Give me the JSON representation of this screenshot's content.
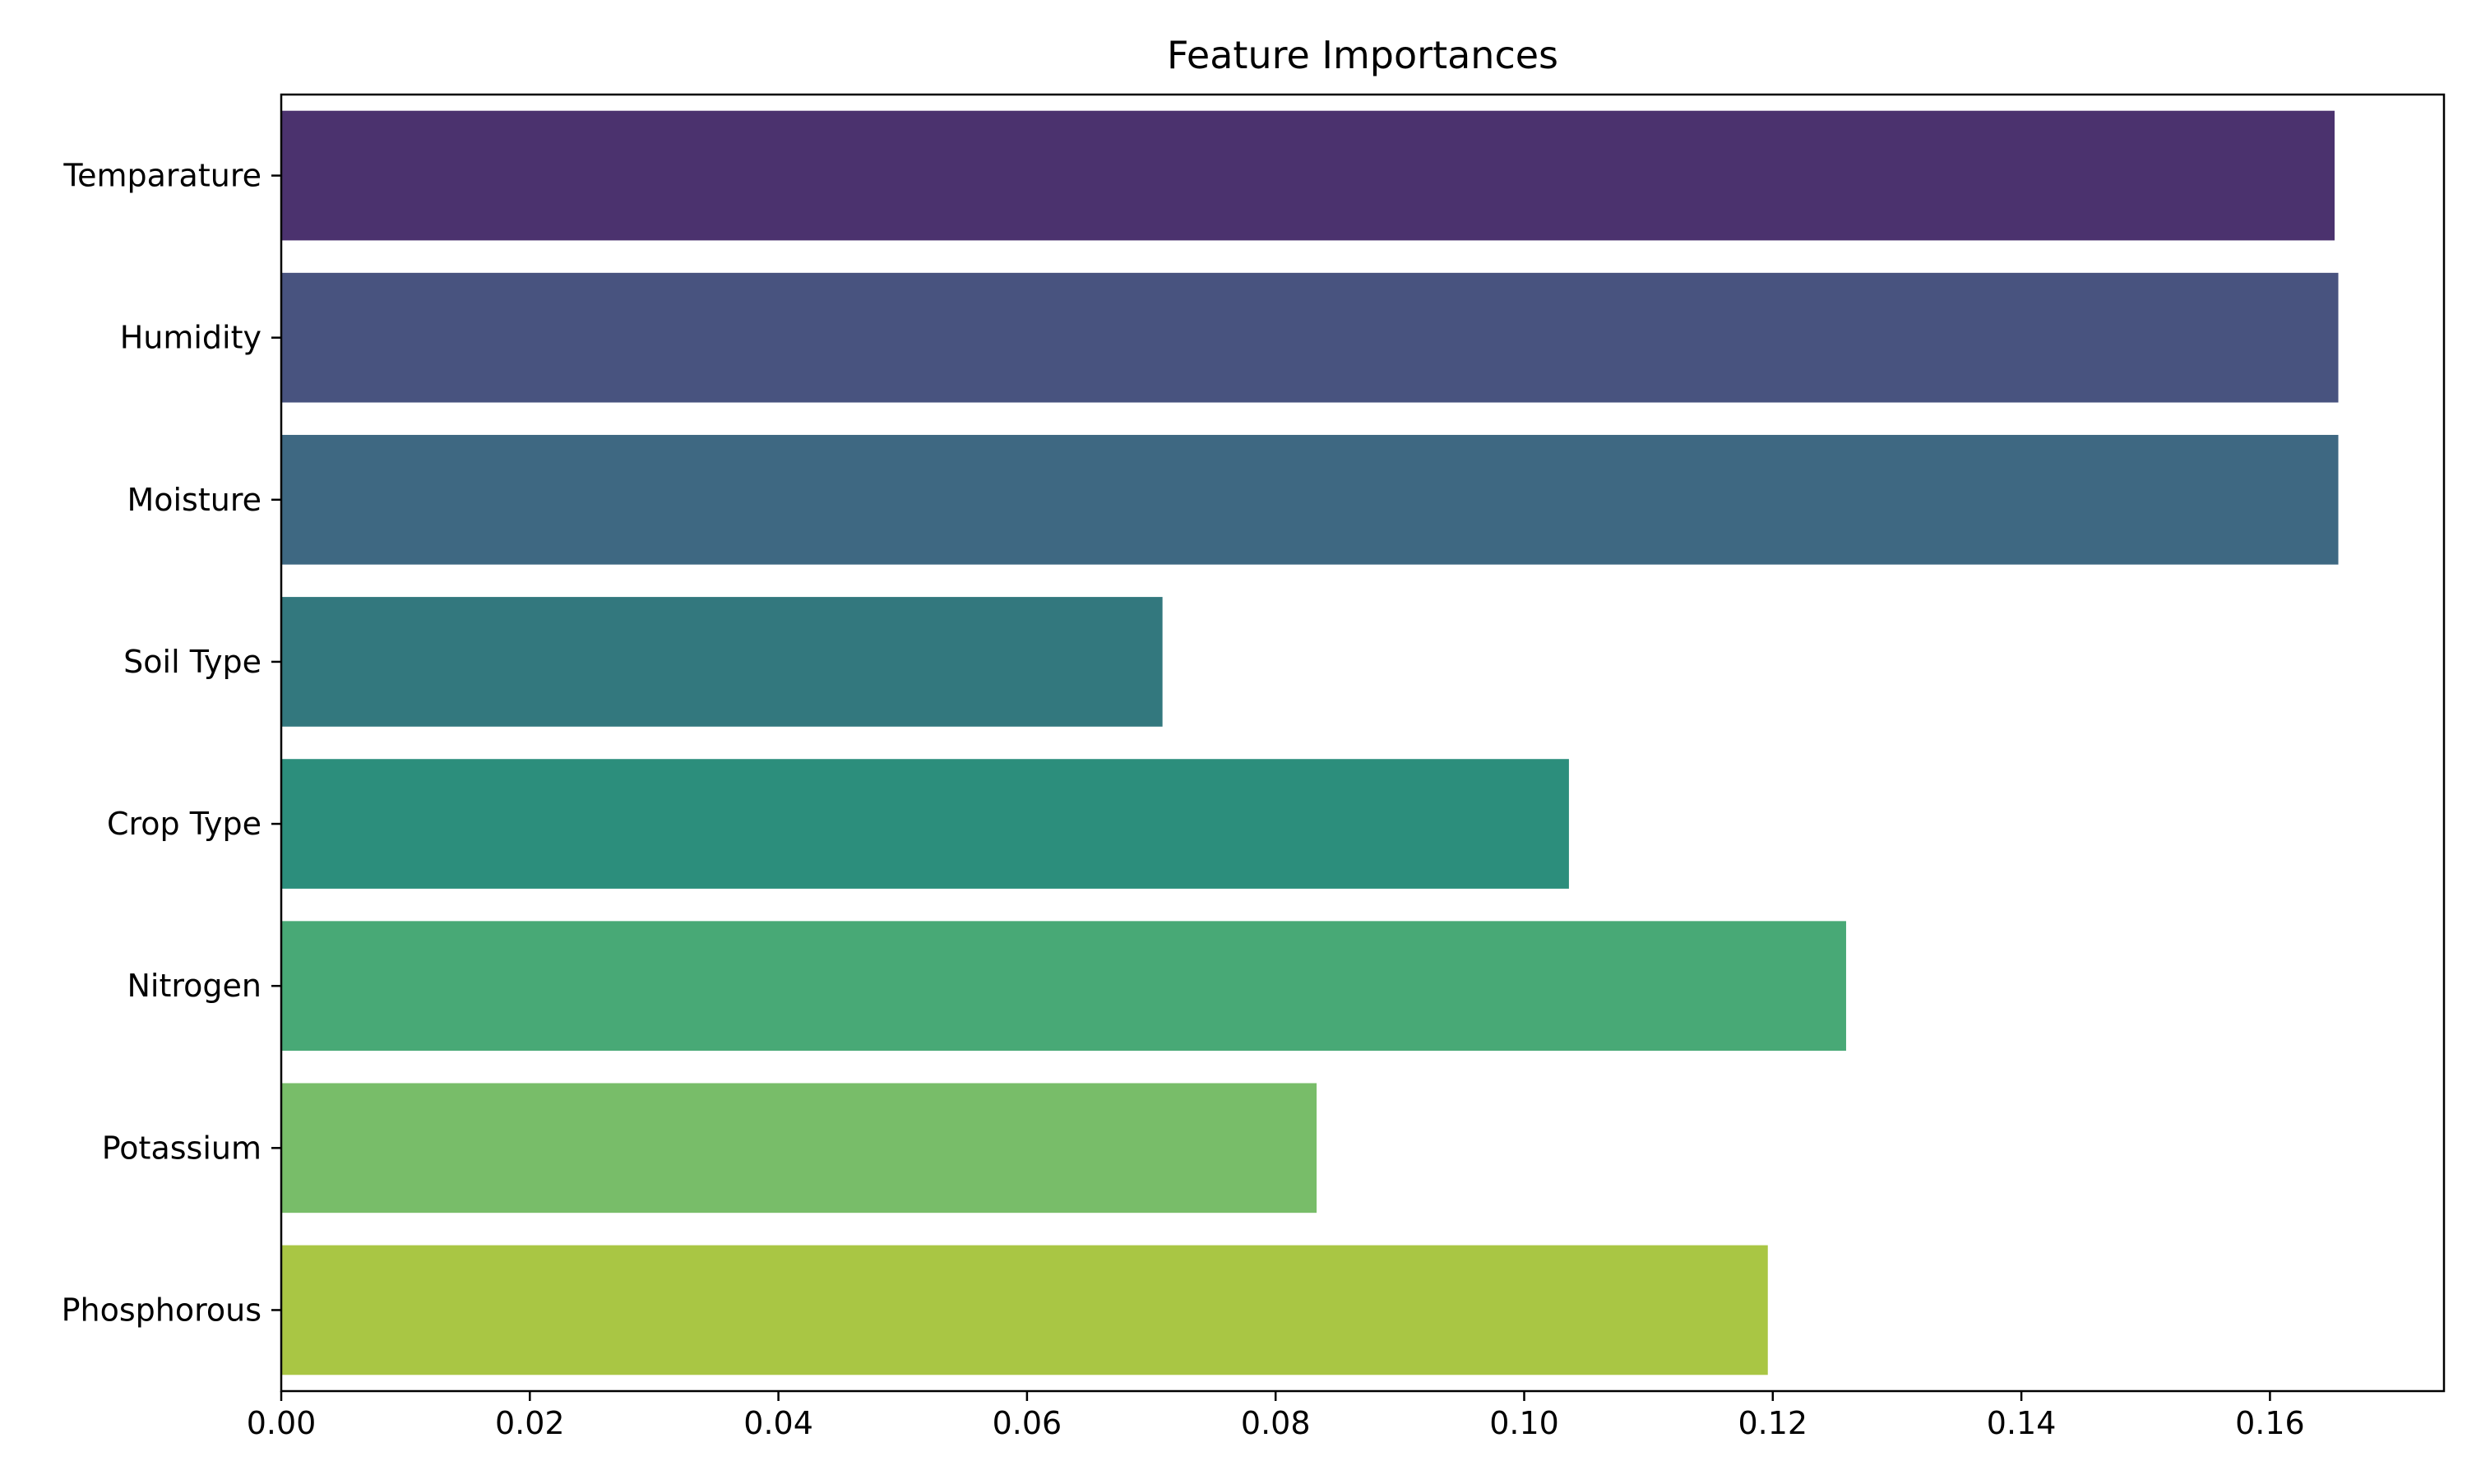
{
  "chart_data": {
    "type": "bar",
    "orientation": "horizontal",
    "title": "Feature Importances",
    "xlabel": "",
    "ylabel": "",
    "categories": [
      "Temparature",
      "Humidity",
      "Moisture",
      "Soil Type",
      "Crop Type",
      "Nitrogen",
      "Potassium",
      "Phosphorous"
    ],
    "values": [
      0.1652,
      0.1655,
      0.1655,
      0.0709,
      0.1036,
      0.1259,
      0.0833,
      0.1196
    ],
    "colors": [
      "#4b326e",
      "#48537f",
      "#3e6882",
      "#33787e",
      "#2c8e7c",
      "#48a976",
      "#78bd69",
      "#a9c644"
    ],
    "xlim": [
      0,
      0.174
    ],
    "xticks": [
      "0.00",
      "0.02",
      "0.04",
      "0.06",
      "0.08",
      "0.10",
      "0.12",
      "0.14",
      "0.16"
    ],
    "grid": false,
    "legend": "none"
  }
}
